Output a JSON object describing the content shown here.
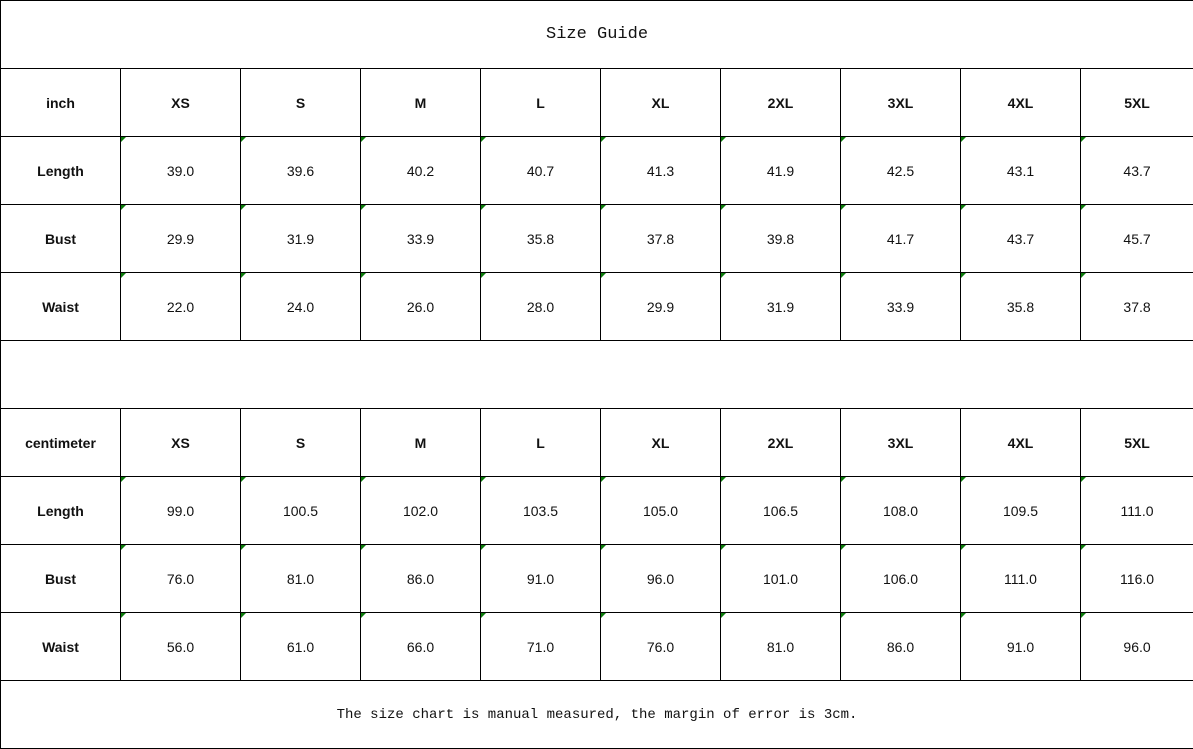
{
  "title": "Size Guide",
  "sizes": [
    "XS",
    "S",
    "M",
    "L",
    "XL",
    "2XL",
    "3XL",
    "4XL",
    "5XL"
  ],
  "tables": [
    {
      "unit": "inch",
      "rows": [
        {
          "label": "Length",
          "values": [
            "39.0",
            "39.6",
            "40.2",
            "40.7",
            "41.3",
            "41.9",
            "42.5",
            "43.1",
            "43.7"
          ]
        },
        {
          "label": "Bust",
          "values": [
            "29.9",
            "31.9",
            "33.9",
            "35.8",
            "37.8",
            "39.8",
            "41.7",
            "43.7",
            "45.7"
          ]
        },
        {
          "label": "Waist",
          "values": [
            "22.0",
            "24.0",
            "26.0",
            "28.0",
            "29.9",
            "31.9",
            "33.9",
            "35.8",
            "37.8"
          ]
        }
      ]
    },
    {
      "unit": "centimeter",
      "rows": [
        {
          "label": "Length",
          "values": [
            "99.0",
            "100.5",
            "102.0",
            "103.5",
            "105.0",
            "106.5",
            "108.0",
            "109.5",
            "111.0"
          ]
        },
        {
          "label": "Bust",
          "values": [
            "76.0",
            "81.0",
            "86.0",
            "91.0",
            "96.0",
            "101.0",
            "106.0",
            "111.0",
            "116.0"
          ]
        },
        {
          "label": "Waist",
          "values": [
            "56.0",
            "61.0",
            "66.0",
            "71.0",
            "76.0",
            "81.0",
            "86.0",
            "91.0",
            "96.0"
          ]
        }
      ]
    }
  ],
  "note": "The size chart is manual measured, the margin of error is 3cm.",
  "colors": {
    "cell_marker": "#0a7a0a",
    "border": "#000000"
  }
}
